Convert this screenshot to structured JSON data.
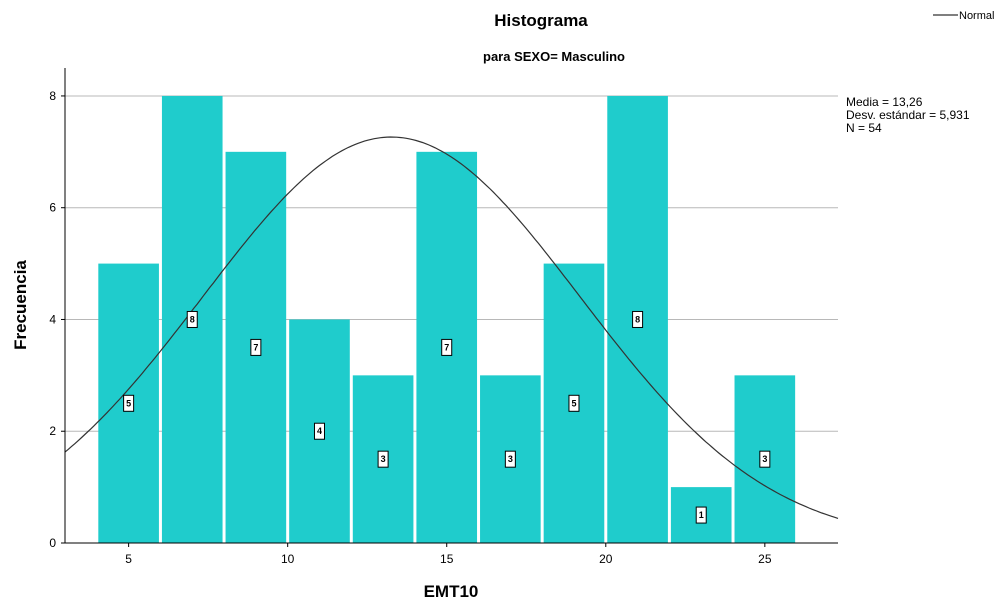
{
  "chart_data": {
    "type": "bar",
    "title": "Histograma",
    "subtitle": "para SEXO= Masculino",
    "xlabel": "EMT10",
    "ylabel": "Frecuencia",
    "xlim": [
      3,
      27.3
    ],
    "ylim": [
      0,
      8.5
    ],
    "x_ticks": [
      5,
      10,
      15,
      20,
      25
    ],
    "y_ticks": [
      0,
      2,
      4,
      6,
      8
    ],
    "grid": true,
    "bar_color": "#1fcccc",
    "bin_width": 2,
    "bins": [
      {
        "center": 5,
        "value": 5
      },
      {
        "center": 7,
        "value": 8
      },
      {
        "center": 9,
        "value": 7
      },
      {
        "center": 11,
        "value": 4
      },
      {
        "center": 13,
        "value": 3
      },
      {
        "center": 15,
        "value": 7
      },
      {
        "center": 17,
        "value": 3
      },
      {
        "center": 19,
        "value": 5
      },
      {
        "center": 21,
        "value": 8
      },
      {
        "center": 23,
        "value": 1
      },
      {
        "center": 25,
        "value": 3
      }
    ],
    "normal_curve": {
      "mean": 13.26,
      "sd": 5.931,
      "n": 54
    },
    "legend": {
      "label": "Normal",
      "position": "top-right"
    },
    "stats": [
      "Media = 13,26",
      "Desv. estándar = 5,931",
      "N = 54"
    ]
  }
}
